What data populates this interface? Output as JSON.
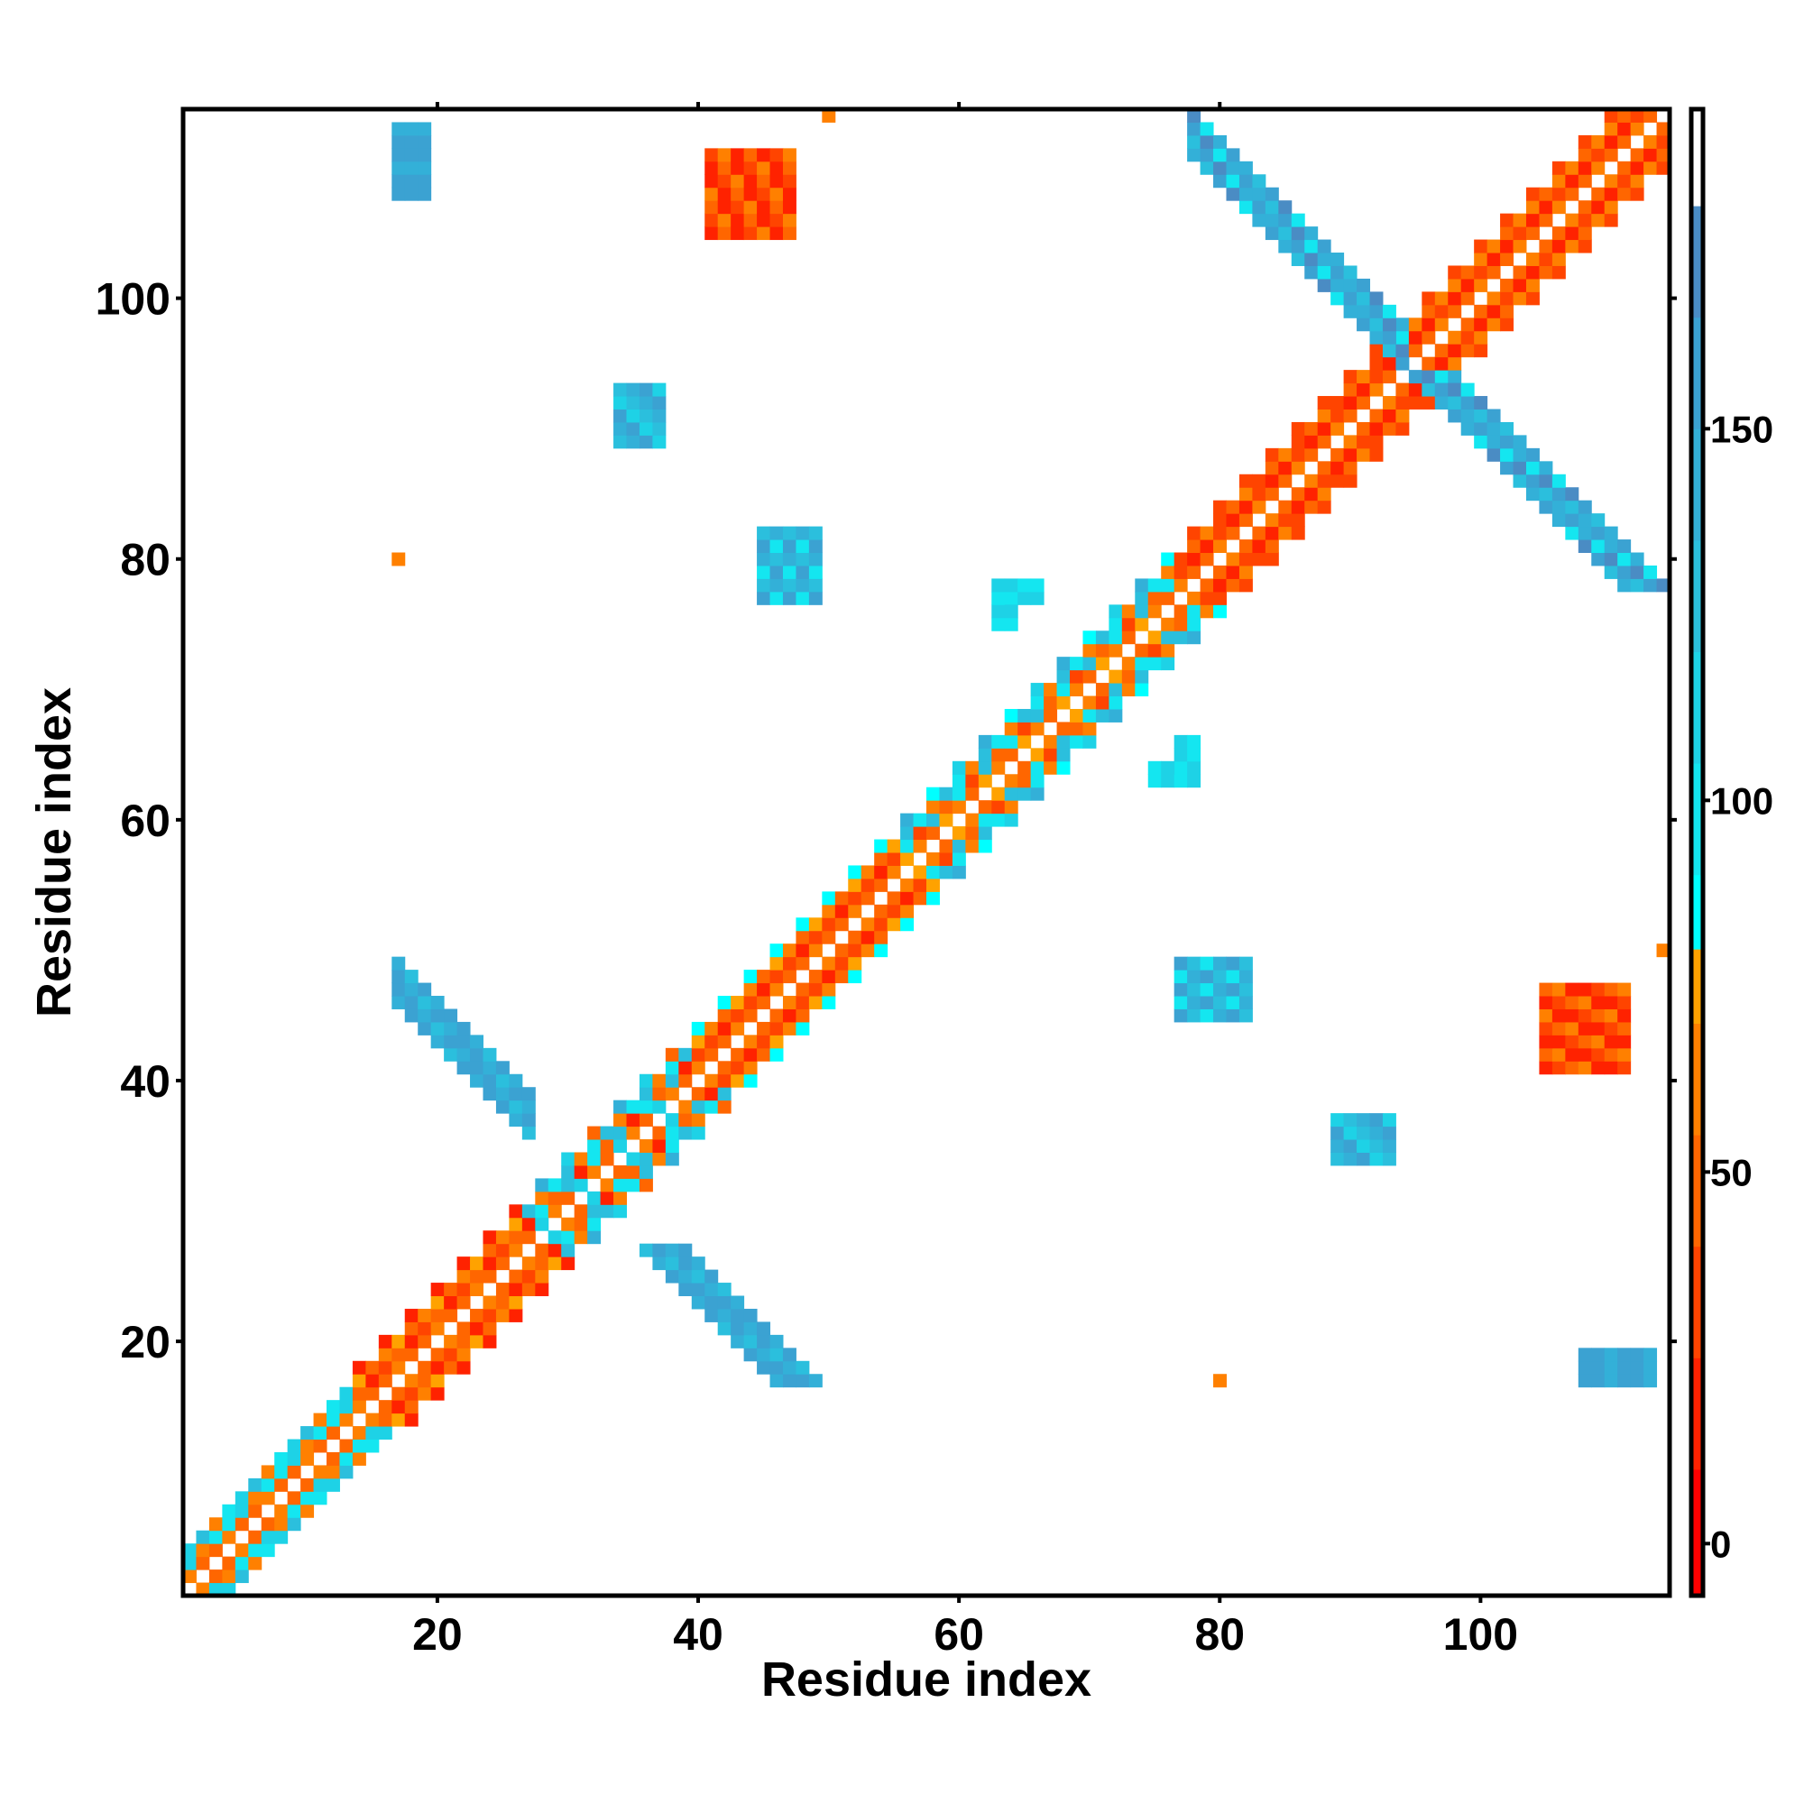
{
  "chart_data": {
    "type": "heatmap",
    "title": "",
    "xlabel": "Residue index",
    "ylabel": "Residue index",
    "xlim": [
      0.5,
      114.5
    ],
    "ylim": [
      0.5,
      114.5
    ],
    "n_residues": 114,
    "symmetric": true,
    "xticks": [
      20,
      40,
      60,
      80,
      100
    ],
    "yticks": [
      20,
      40,
      60,
      80,
      100
    ],
    "colorbar": {
      "range": [
        -7,
        193
      ],
      "ticks": [
        0,
        50,
        100,
        150
      ],
      "bins": [
        [
          -7,
          10,
          "#ff0000"
        ],
        [
          10,
          25,
          "#ff2200"
        ],
        [
          25,
          40,
          "#ff4400"
        ],
        [
          40,
          55,
          "#ff6600"
        ],
        [
          55,
          70,
          "#ff8000"
        ],
        [
          70,
          80,
          "#ffa200"
        ],
        [
          80,
          90,
          "#00ffff"
        ],
        [
          90,
          105,
          "#14e6f0"
        ],
        [
          105,
          120,
          "#1ed2e6"
        ],
        [
          120,
          135,
          "#2bbfdd"
        ],
        [
          135,
          150,
          "#33b0d8"
        ],
        [
          150,
          165,
          "#3ba2d2"
        ],
        [
          165,
          180,
          "#4a8cc4"
        ],
        [
          180,
          193,
          "#ffffff"
        ]
      ]
    },
    "near_diagonal_segments": [
      {
        "residues": [
          1,
          13
        ],
        "d1": [
          45,
          60,
          50
        ],
        "d2": [
          100,
          115,
          60,
          95
        ],
        "d3": [
          95,
          110,
          120,
          65
        ],
        "d4": []
      },
      {
        "residues": [
          14,
          26
        ],
        "d1": [
          50,
          45,
          60
        ],
        "d2": [
          15,
          25,
          40
        ],
        "d3": [
          40,
          55,
          70
        ],
        "d4": [
          20
        ]
      },
      {
        "residues": [
          27,
          39
        ],
        "d1": [
          45,
          110,
          60
        ],
        "d2": [
          100,
          40,
          120,
          20
        ],
        "d3": [
          130,
          60,
          95
        ],
        "d4": [
          115,
          140,
          50
        ]
      },
      {
        "residues": [
          40,
          55
        ],
        "d1": [
          50,
          60,
          45
        ],
        "d2": [
          10,
          25,
          30
        ],
        "d3": [
          45,
          70,
          55
        ],
        "d4": [
          85,
          30
        ]
      },
      {
        "residues": [
          56,
          76
        ],
        "d1": [
          55,
          45,
          70
        ],
        "d2": [
          100,
          30,
          120,
          50
        ],
        "d3": [
          90,
          60,
          130
        ],
        "d4": [
          110,
          85,
          140
        ]
      },
      {
        "residues": [
          77,
          94
        ],
        "d1": [
          50,
          45,
          60
        ],
        "d2": [
          10,
          20,
          35
        ],
        "d3": [
          40,
          55,
          30
        ],
        "d4": [
          25
        ]
      },
      {
        "residues": [
          95,
          113
        ],
        "d1": [
          50,
          60,
          45
        ],
        "d2": [
          10,
          25,
          20
        ],
        "d3": [
          45,
          55,
          65
        ],
        "d4": [
          30
        ]
      }
    ],
    "antiparallel_bands": [
      {
        "residues": [
          17,
          27
        ],
        "pair_sum": 63,
        "width": 4,
        "values": [
          160,
          150,
          140,
          125,
          155,
          145
        ]
      },
      {
        "residues": [
          78,
          94
        ],
        "pair_sum": 189,
        "width": 4,
        "values": [
          160,
          145,
          130,
          150,
          165,
          100,
          140
        ]
      }
    ],
    "patches": [
      {
        "i": [
          34,
          37
        ],
        "j": [
          89,
          93
        ],
        "values": [
          125,
          140,
          160,
          110
        ]
      },
      {
        "i": [
          45,
          49
        ],
        "j": [
          77,
          82
        ],
        "values": [
          150,
          130,
          100,
          140
        ]
      },
      {
        "i": [
          41,
          47
        ],
        "j": [
          105,
          111
        ],
        "values": [
          10,
          30,
          50,
          65,
          20
        ]
      },
      {
        "i": [
          17,
          19
        ],
        "j": [
          108,
          113
        ],
        "values": [
          150,
          160,
          135
        ]
      },
      {
        "i": [
          17,
          17
        ],
        "j": [
          80,
          80
        ],
        "values": [
          55
        ]
      },
      {
        "i": [
          50,
          50
        ],
        "j": [
          114,
          114
        ],
        "values": [
          55
        ]
      },
      {
        "i": [
          64,
          66
        ],
        "j": [
          77,
          78
        ],
        "values": [
          110,
          100
        ]
      },
      {
        "i": [
          63,
          64
        ],
        "j": [
          75,
          78
        ],
        "values": [
          95,
          115
        ]
      }
    ]
  }
}
